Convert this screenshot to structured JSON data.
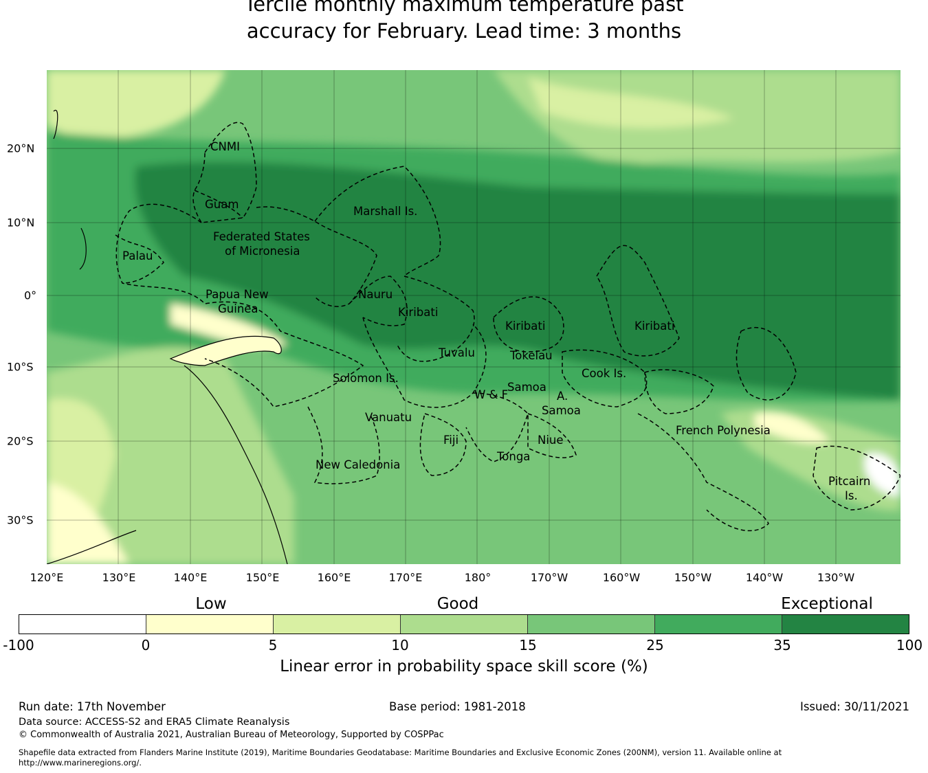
{
  "title": {
    "line1": "Tercile monthly maximum temperature past",
    "line2": "accuracy for February. Lead time: 3 months"
  },
  "map": {
    "lon_labels": [
      "120°E",
      "130°E",
      "140°E",
      "150°E",
      "160°E",
      "170°E",
      "180°",
      "170°W",
      "160°W",
      "150°W",
      "140°W",
      "130°W"
    ],
    "lat_labels": [
      "20°N",
      "10°N",
      "0°",
      "10°S",
      "20°S",
      "30°S"
    ],
    "regions": [
      "CNMI",
      "Guam",
      "Marshall Is.",
      "Federated States",
      "of Micronesia",
      "Palau",
      "Papua New",
      "Guinea",
      "Nauru",
      "Kiribati",
      "Kiribati",
      "Kiribati",
      "Tuvalu",
      "Tokelau",
      "Cook Is.",
      "Solomon Is.",
      "Samoa",
      "W & F",
      "A.",
      "Samoa",
      "Vanuatu",
      "Fiji",
      "Niue",
      "Tonga",
      "New Caledonia",
      "French Polynesia",
      "Pitcairn",
      "Is."
    ]
  },
  "colorbar": {
    "categories": [
      "Low",
      "Good",
      "Exceptional"
    ],
    "ticks": [
      "-100",
      "0",
      "5",
      "10",
      "15",
      "25",
      "35",
      "100"
    ],
    "colors": [
      "#ffffff",
      "#ffffcc",
      "#d9f0a3",
      "#addd8e",
      "#78c679",
      "#41ab5d",
      "#238443"
    ],
    "label": "Linear error in probability space skill score (%)"
  },
  "footer": {
    "run_date": "Run date: 17th November",
    "base_period": "Base period: 1981-2018",
    "issued": "Issued: 30/11/2021",
    "data_source": "Data source: ACCESS-S2 and ERA5 Climate Reanalysis",
    "copyright": "© Commonwealth of Australia 2021, Australian Bureau of Meteorology, Supported by COSPPac",
    "shapefile": "Shapefile data extracted from Flanders Marine Institute (2019), Maritime Boundaries Geodatabase: Maritime Boundaries and Exclusive Economic Zones (200NM), version 11. Available online at http://www.marineregions.org/."
  }
}
